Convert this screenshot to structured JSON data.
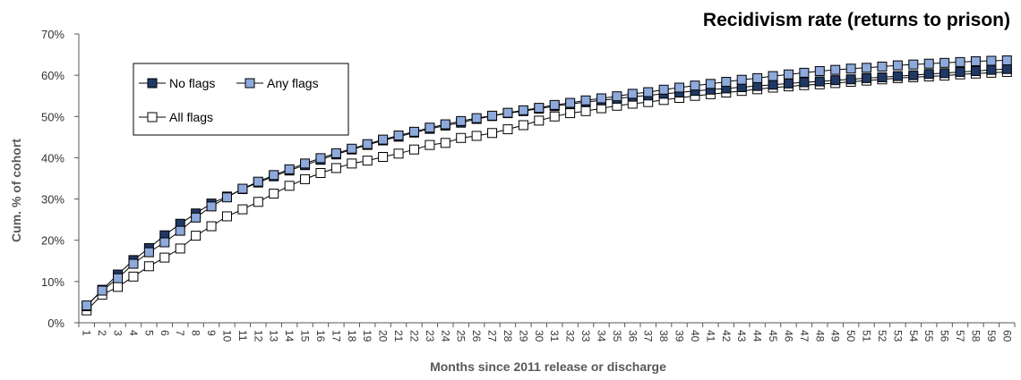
{
  "chart_data": {
    "type": "line",
    "title": "Recidivism rate (returns to prison)",
    "xlabel": "Months since 2011 release or discharge",
    "ylabel": "Cum. % of cohort",
    "ylim": [
      0,
      70
    ],
    "yticks": [
      "0%",
      "10%",
      "20%",
      "30%",
      "40%",
      "50%",
      "60%",
      "70%"
    ],
    "grid": false,
    "legend_position": "top-left",
    "x": [
      1,
      2,
      3,
      4,
      5,
      6,
      7,
      8,
      9,
      10,
      11,
      12,
      13,
      14,
      15,
      16,
      17,
      18,
      19,
      20,
      21,
      22,
      23,
      24,
      25,
      26,
      27,
      28,
      29,
      30,
      31,
      32,
      33,
      34,
      35,
      36,
      37,
      38,
      39,
      40,
      41,
      42,
      43,
      44,
      45,
      46,
      47,
      48,
      49,
      50,
      51,
      52,
      53,
      54,
      55,
      56,
      57,
      58,
      59,
      60
    ],
    "series": [
      {
        "name": "No flags",
        "marker_fill": "#203864",
        "values": [
          4.0,
          8.0,
          11.7,
          15.2,
          18.1,
          21.2,
          24.0,
          26.5,
          28.9,
          30.6,
          32.4,
          34.0,
          35.5,
          36.9,
          38.2,
          39.5,
          40.8,
          42.0,
          43.1,
          44.2,
          45.1,
          46.1,
          47.0,
          47.8,
          48.5,
          49.4,
          50.1,
          50.8,
          51.3,
          51.9,
          52.5,
          53.0,
          53.5,
          53.9,
          54.3,
          54.8,
          55.1,
          55.5,
          55.8,
          56.2,
          56.5,
          56.8,
          57.1,
          57.4,
          57.7,
          58.0,
          58.3,
          58.5,
          58.8,
          59.0,
          59.3,
          59.5,
          59.8,
          60.0,
          60.3,
          60.5,
          60.8,
          61.0,
          61.3,
          61.5
        ]
      },
      {
        "name": "Any flags",
        "marker_fill": "#8EA9DB",
        "values": [
          4.2,
          7.8,
          10.8,
          14.3,
          17.1,
          19.5,
          22.3,
          25.5,
          28.2,
          30.4,
          32.5,
          34.2,
          35.8,
          37.2,
          38.6,
          39.9,
          41.1,
          42.2,
          43.3,
          44.4,
          45.4,
          46.3,
          47.3,
          48.1,
          48.9,
          49.6,
          50.2,
          50.9,
          51.5,
          52.1,
          52.8,
          53.3,
          53.9,
          54.4,
          54.9,
          55.5,
          55.9,
          56.5,
          57.0,
          57.5,
          57.9,
          58.4,
          58.9,
          59.3,
          59.8,
          60.2,
          60.6,
          61.0,
          61.3,
          61.6,
          61.8,
          62.1,
          62.4,
          62.6,
          62.8,
          63.0,
          63.2,
          63.4,
          63.5,
          63.6
        ]
      },
      {
        "name": "All flags",
        "marker_fill": "#ffffff",
        "values": [
          3.0,
          6.8,
          8.7,
          11.2,
          13.7,
          15.8,
          18.0,
          21.1,
          23.4,
          25.8,
          27.5,
          29.3,
          31.3,
          33.2,
          34.8,
          36.3,
          37.5,
          38.6,
          39.3,
          40.2,
          41.0,
          42.0,
          43.1,
          43.6,
          44.8,
          45.3,
          46.0,
          46.9,
          47.9,
          49.0,
          50.0,
          50.8,
          51.3,
          52.0,
          52.6,
          53.1,
          53.5,
          54.0,
          54.5,
          55.0,
          55.4,
          55.8,
          56.2,
          56.6,
          57.0,
          57.3,
          57.6,
          57.8,
          58.1,
          58.4,
          58.7,
          59.0,
          59.3,
          59.5,
          59.7,
          59.9,
          60.2,
          60.4,
          60.6,
          60.8
        ]
      }
    ]
  }
}
